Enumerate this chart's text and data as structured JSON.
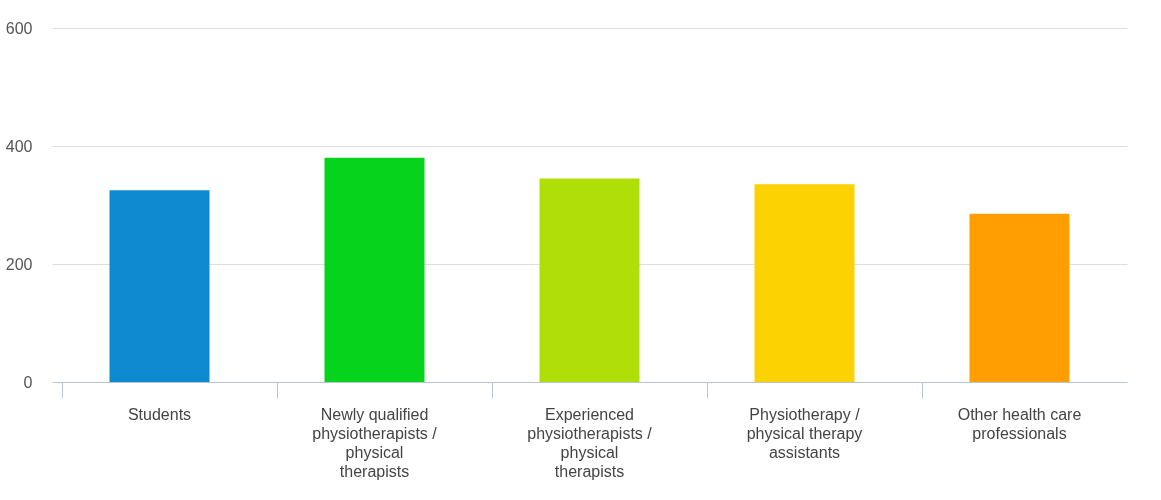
{
  "chart_data": {
    "type": "bar",
    "categories": [
      "Students",
      "Newly qualified physiotherapists / physical therapists",
      "Experienced physiotherapists / physical therapists",
      "Physiotherapy / physical therapy assistants",
      "Other health care professionals"
    ],
    "values": [
      325,
      380,
      345,
      335,
      285
    ],
    "colors": [
      "#0d8ad0",
      "#06d41c",
      "#b0de09",
      "#fcd202",
      "#ff9e01"
    ],
    "ylim": [
      0,
      600
    ],
    "yticks": [
      0,
      200,
      400,
      600
    ],
    "grid": "y"
  }
}
